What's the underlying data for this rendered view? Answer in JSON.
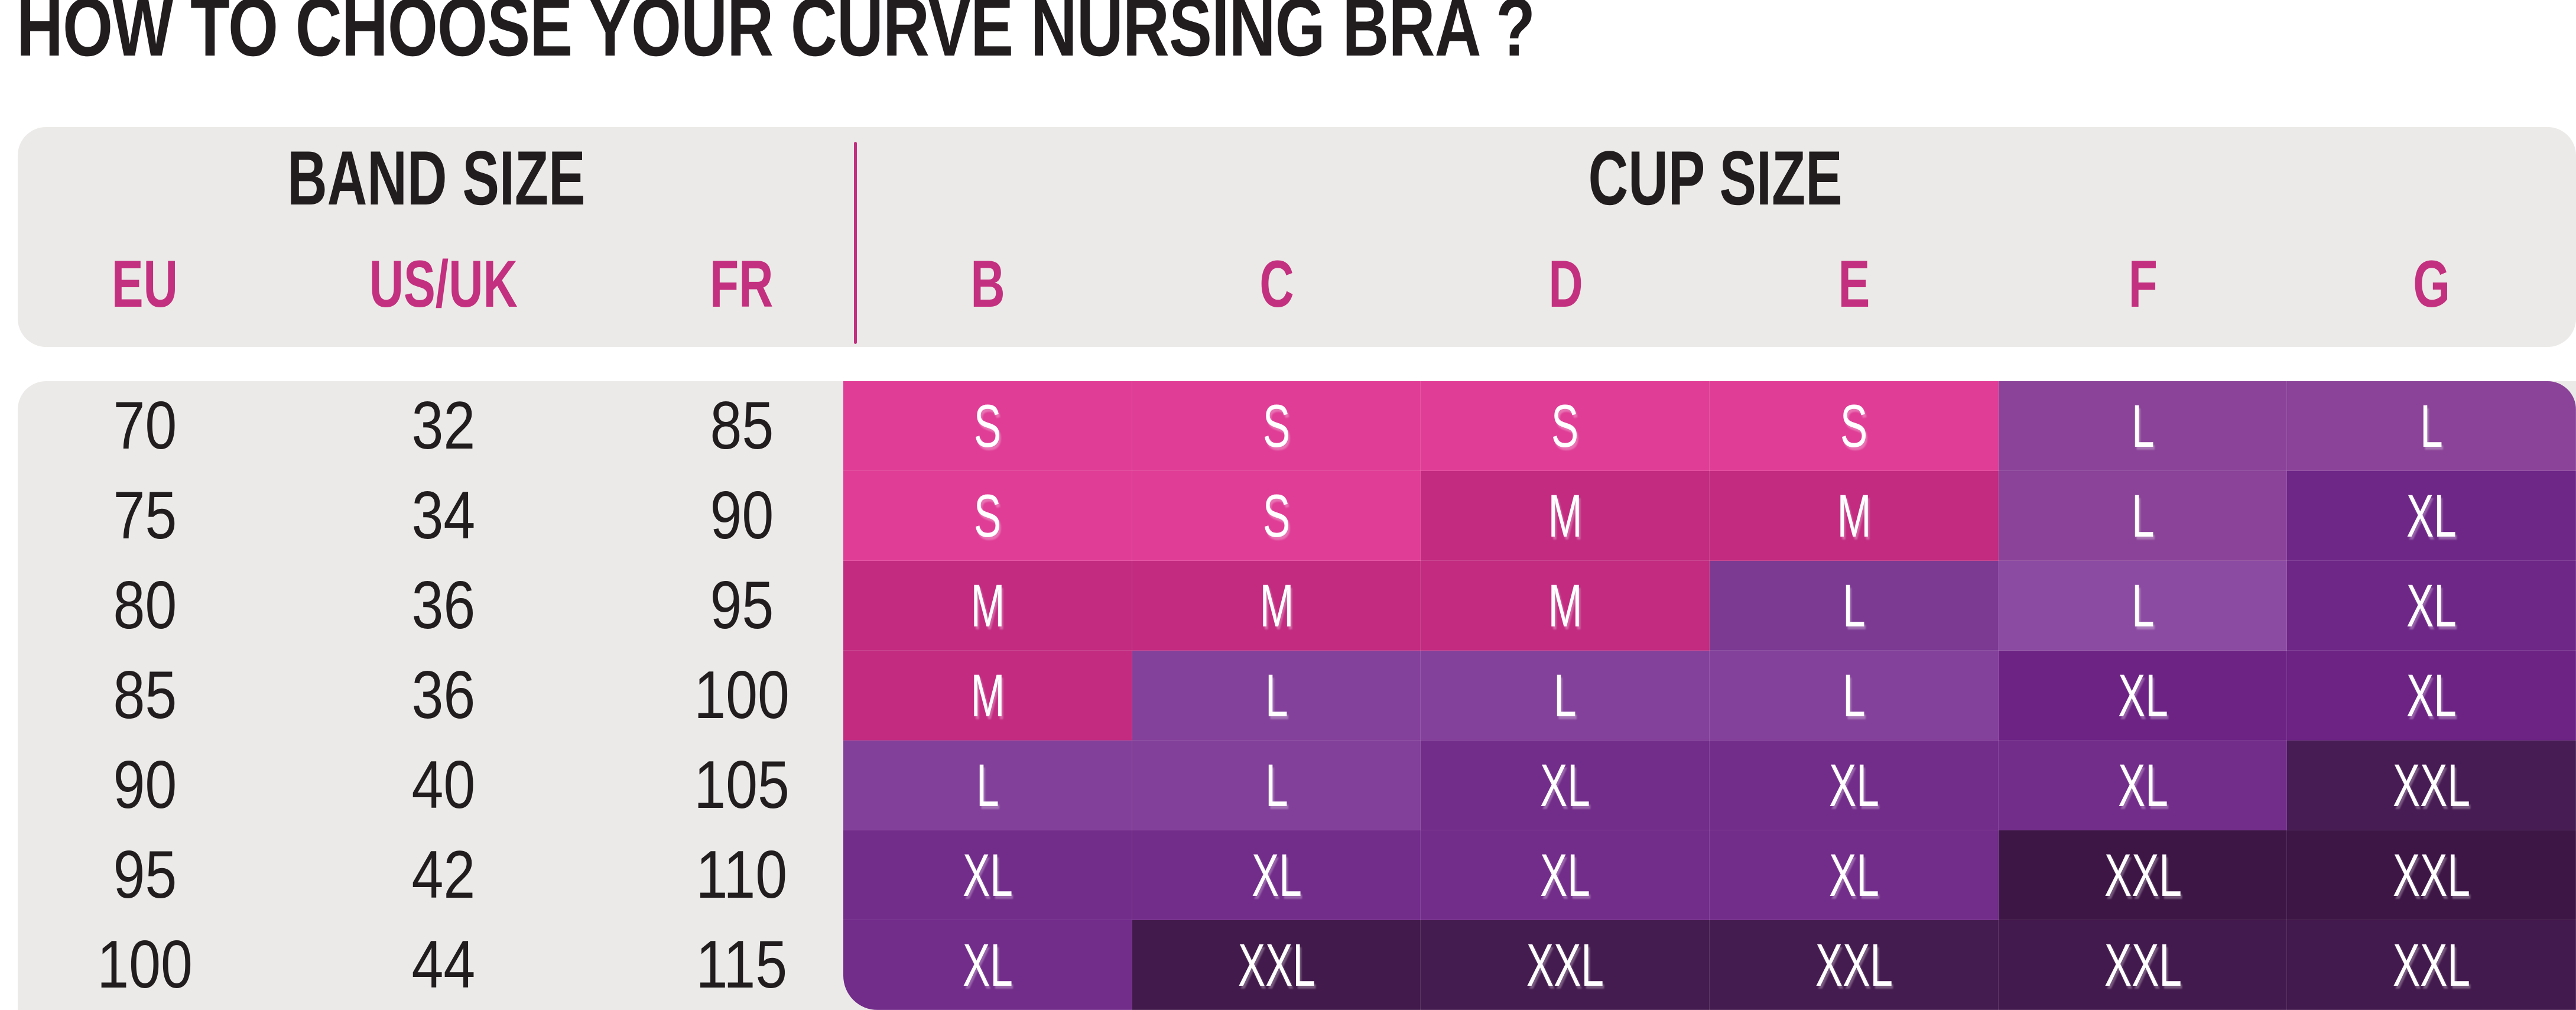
{
  "chart_data": {
    "type": "table",
    "title": "HOW TO CHOOSE YOUR CURVE NURSING BRA ?",
    "sections": {
      "band": "BAND SIZE",
      "cup": "CUP SIZE"
    },
    "band_columns": [
      "EU",
      "US/UK",
      "FR"
    ],
    "cup_columns": [
      "B",
      "C",
      "D",
      "E",
      "F",
      "G"
    ],
    "size_values": [
      "S",
      "M",
      "L",
      "XL",
      "XXL"
    ],
    "palette": {
      "s": "#E03D96",
      "m": "#C22B80",
      "l1": "#8A4398",
      "l2": "#7C3A93",
      "l3": "#8C4BA3",
      "l4": "#84419B",
      "l5": "#82409A",
      "x1": "#6E2787",
      "x2": "#6C2384",
      "x3": "#722C8A",
      "xx1": "#471B53",
      "xx2": "#3D1646",
      "xx3": "#421A4B",
      "xx4": "#451C4F",
      "xx5": "#431A4D"
    },
    "rows": [
      {
        "eu": "70",
        "us": "32",
        "fr": "85",
        "cells": [
          [
            "S",
            "s"
          ],
          [
            "S",
            "s"
          ],
          [
            "S",
            "s"
          ],
          [
            "S",
            "s"
          ],
          [
            "L",
            "l1"
          ],
          [
            "L",
            "l1"
          ]
        ]
      },
      {
        "eu": "75",
        "us": "34",
        "fr": "90",
        "cells": [
          [
            "S",
            "s"
          ],
          [
            "S",
            "s"
          ],
          [
            "M",
            "m"
          ],
          [
            "M",
            "m"
          ],
          [
            "L",
            "l1"
          ],
          [
            "XL",
            "x1"
          ]
        ]
      },
      {
        "eu": "80",
        "us": "36",
        "fr": "95",
        "cells": [
          [
            "M",
            "m"
          ],
          [
            "M",
            "m"
          ],
          [
            "M",
            "m"
          ],
          [
            "L",
            "l2"
          ],
          [
            "L",
            "l3"
          ],
          [
            "XL",
            "x1"
          ]
        ]
      },
      {
        "eu": "85",
        "us": "36",
        "fr": "100",
        "cells": [
          [
            "M",
            "m"
          ],
          [
            "L",
            "l4"
          ],
          [
            "L",
            "l4"
          ],
          [
            "L",
            "l4"
          ],
          [
            "XL",
            "x2"
          ],
          [
            "XL",
            "x2"
          ]
        ]
      },
      {
        "eu": "90",
        "us": "40",
        "fr": "105",
        "cells": [
          [
            "L",
            "l5"
          ],
          [
            "L",
            "l5"
          ],
          [
            "XL",
            "x3"
          ],
          [
            "XL",
            "x3"
          ],
          [
            "XL",
            "x3"
          ],
          [
            "XXL",
            "xx1"
          ]
        ]
      },
      {
        "eu": "95",
        "us": "42",
        "fr": "110",
        "cells": [
          [
            "XL",
            "x3"
          ],
          [
            "XL",
            "x3"
          ],
          [
            "XL",
            "x3"
          ],
          [
            "XL",
            "x3"
          ],
          [
            "XXL",
            "xx2"
          ],
          [
            "XXL",
            "xx2"
          ]
        ]
      },
      {
        "eu": "100",
        "us": "44",
        "fr": "115",
        "cells": [
          [
            "XL",
            "x3"
          ],
          [
            "XXL",
            "xx3"
          ],
          [
            "XXL",
            "xx4"
          ],
          [
            "XXL",
            "xx4"
          ],
          [
            "XXL",
            "xx5"
          ],
          [
            "XXL",
            "xx5"
          ]
        ]
      }
    ]
  },
  "style": {
    "accent_pink": "#C3307F",
    "panel_gray": "#ECEAE8",
    "text_dark": "#211D1E",
    "cell_text": "#FFFFFF",
    "background": "#FFFFFF"
  }
}
